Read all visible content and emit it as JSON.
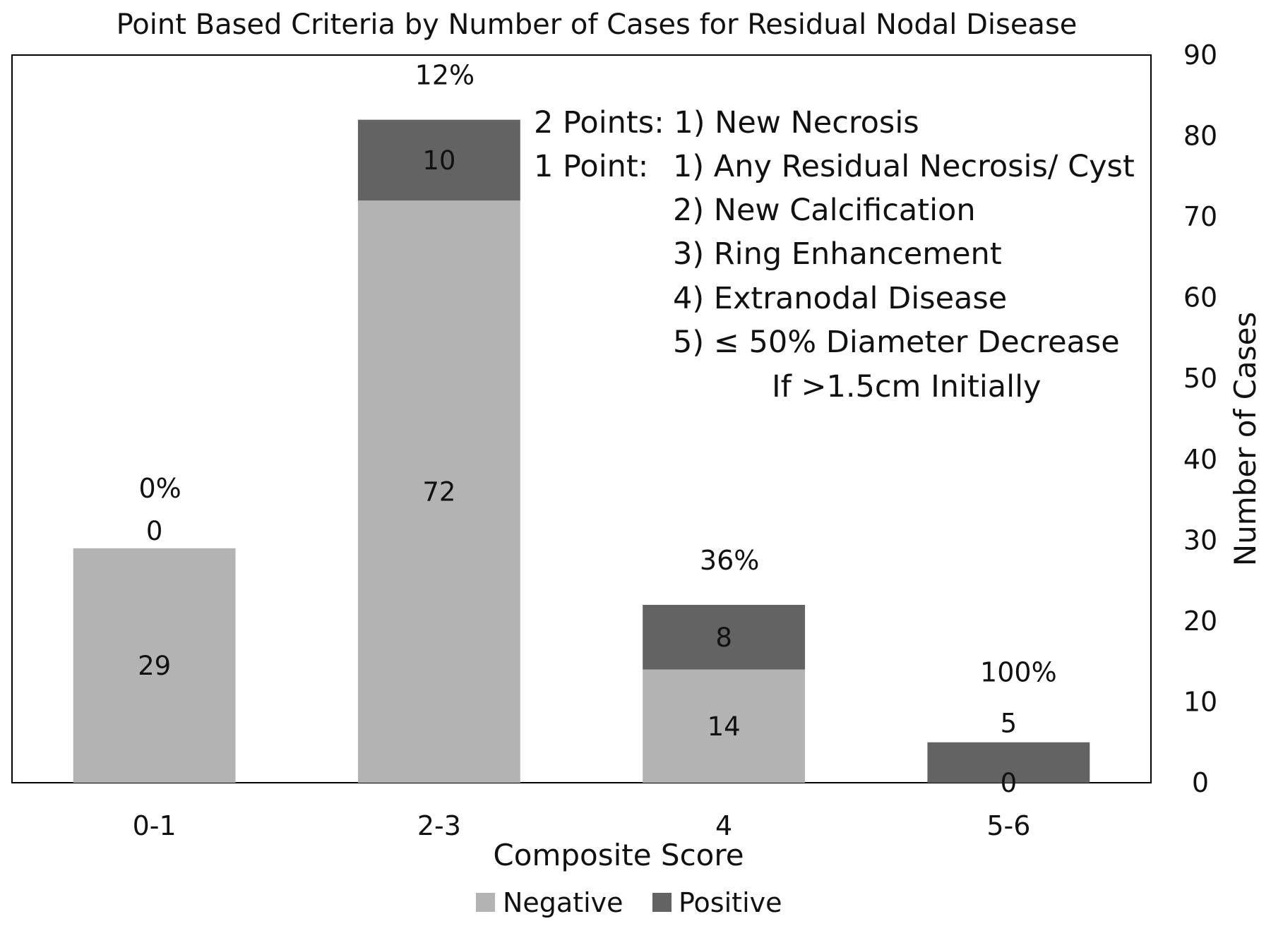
{
  "chart_data": {
    "type": "bar",
    "stacked": true,
    "title": "Point Based Criteria by Number of Cases for Residual Nodal Disease",
    "xlabel": "Composite Score",
    "ylabel": "Number of Cases",
    "y_axis_side": "right",
    "ylim": [
      0,
      90
    ],
    "yticks": [
      0,
      10,
      20,
      30,
      40,
      50,
      60,
      70,
      80,
      90
    ],
    "grid": false,
    "legend_position": "bottom",
    "categories": [
      "0-1",
      "2-3",
      "4",
      "5-6"
    ],
    "series": [
      {
        "name": "Negative",
        "color": "#b3b3b3",
        "values": [
          29,
          72,
          14,
          0
        ]
      },
      {
        "name": "Positive",
        "color": "#636363",
        "values": [
          0,
          10,
          8,
          5
        ]
      }
    ],
    "percent_labels": [
      "0%",
      "12%",
      "36%",
      "100%"
    ],
    "annotation_lines": [
      "2 Points: 1) New Necrosis",
      "1 Point:",
      "1) Any Residual Necrosis/ Cyst",
      "2) New Calcification",
      "3) Ring Enhancement",
      "4) Extranodal Disease",
      "5) ≤ 50% Diameter Decrease",
      "If >1.5cm Initially"
    ]
  }
}
